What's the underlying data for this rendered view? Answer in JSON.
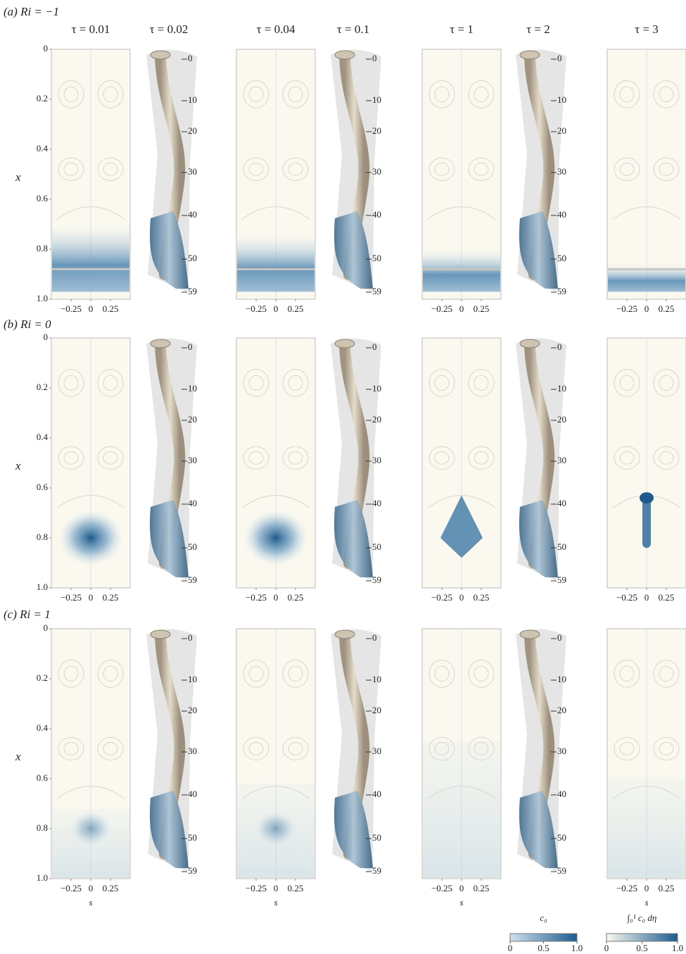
{
  "columns": [
    "τ = 0.01",
    "τ = 0.02",
    "τ = 0.04",
    "τ = 0.1",
    "τ = 1",
    "τ = 2",
    "τ = 3"
  ],
  "rows": [
    {
      "label": "(a) Ri = −1"
    },
    {
      "label": "(b) Ri = 0"
    },
    {
      "label": "(c) Ri = 1"
    }
  ],
  "x_axis": {
    "label": "x",
    "range": [
      0,
      1
    ],
    "ticks": [
      0,
      0.2,
      0.4,
      0.6,
      0.8,
      {
        "value": 1,
        "label": "1.0"
      }
    ]
  },
  "s_axis": {
    "label": "s",
    "range": [
      -0.5,
      0.5
    ],
    "ticks": [
      {
        "value": -0.25,
        "label": "−0.25"
      },
      0,
      0.25
    ]
  },
  "tube_labels": [
    0,
    10,
    20,
    30,
    40,
    50,
    59
  ],
  "colorbars": [
    {
      "label": "c₀",
      "range": [
        0,
        1
      ],
      "ticks": [
        0,
        0.5,
        {
          "value": 1,
          "label": "1.0"
        }
      ]
    },
    {
      "label": "∫₀¹ c₀ dη",
      "range": [
        0,
        1
      ],
      "ticks": [
        0,
        0.5,
        {
          "value": 1,
          "label": "1.0"
        }
      ]
    }
  ]
}
